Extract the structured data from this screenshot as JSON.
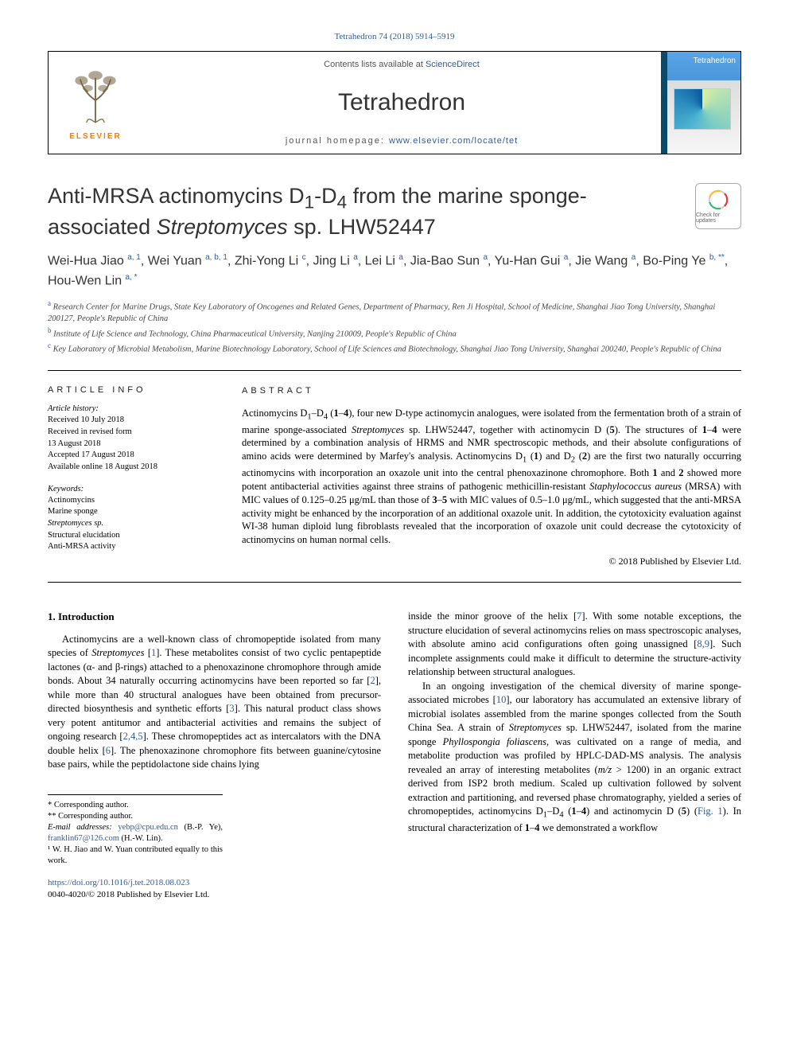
{
  "journal_ref": "Tetrahedron 74 (2018) 5914–5919",
  "header": {
    "contents_prefix": "Contents lists available at ",
    "contents_link": "ScienceDirect",
    "journal_title": "Tetrahedron",
    "homepage_prefix": "journal homepage: ",
    "homepage_link": "www.elsevier.com/locate/tet",
    "elsevier_name": "ELSEVIER",
    "cover_label": "Tetrahedron"
  },
  "crossmark": "Check for updates",
  "title_html": "Anti-MRSA actinomycins D<sub>1</sub>-D<sub>4</sub> from the marine sponge-associated <em>Streptomyces</em> sp. LHW52447",
  "authors_html": "Wei-Hua Jiao <sup>a, 1</sup>, Wei Yuan <sup>a, b, 1</sup>, Zhi-Yong Li <sup>c</sup>, Jing Li <sup>a</sup>, Lei Li <sup>a</sup>, Jia-Bao Sun <sup>a</sup>, Yu-Han Gui <sup>a</sup>, Jie Wang <sup>a</sup>, Bo-Ping Ye <sup>b, **</sup>, Hou-Wen Lin <sup>a, *</sup>",
  "affiliations": [
    {
      "sup": "a",
      "text": "Research Center for Marine Drugs, State Key Laboratory of Oncogenes and Related Genes, Department of Pharmacy, Ren Ji Hospital, School of Medicine, Shanghai Jiao Tong University, Shanghai 200127, People's Republic of China"
    },
    {
      "sup": "b",
      "text": "Institute of Life Science and Technology, China Pharmaceutical University, Nanjing 210009, People's Republic of China"
    },
    {
      "sup": "c",
      "text": "Key Laboratory of Microbial Metabolism, Marine Biotechnology Laboratory, School of Life Sciences and Biotechnology, Shanghai Jiao Tong University, Shanghai 200240, People's Republic of China"
    }
  ],
  "article_info": {
    "head": "ARTICLE INFO",
    "history_label": "Article history:",
    "history": [
      "Received 10 July 2018",
      "Received in revised form",
      "13 August 2018",
      "Accepted 17 August 2018",
      "Available online 18 August 2018"
    ],
    "keywords_label": "Keywords:",
    "keywords": [
      "Actinomycins",
      "Marine sponge",
      "Streptomyces sp.",
      "Structural elucidation",
      "Anti-MRSA activity"
    ]
  },
  "abstract": {
    "head": "ABSTRACT",
    "text_html": "Actinomycins D<sub>1</sub>–D<sub>4</sub> (<b>1</b>–<b>4</b>), four new D-type actinomycin analogues, were isolated from the fermentation broth of a strain of marine sponge-associated <em>Streptomyces</em> sp. LHW52447, together with actinomycin D (<b>5</b>). The structures of <b>1</b>–<b>4</b> were determined by a combination analysis of HRMS and NMR spectroscopic methods, and their absolute configurations of amino acids were determined by Marfey's analysis. Actinomycins D<sub>1</sub> (<b>1</b>) and D<sub>2</sub> (<b>2</b>) are the first two naturally occurring actinomycins with incorporation an oxazole unit into the central phenoxazinone chromophore. Both <b>1</b> and <b>2</b> showed more potent antibacterial activities against three strains of pathogenic methicillin-resistant <em>Staphylococcus aureus</em> (MRSA) with MIC values of 0.125–0.25 μg/mL than those of <b>3</b>–<b>5</b> with MIC values of 0.5–1.0 μg/mL, which suggested that the anti-MRSA activity might be enhanced by the incorporation of an additional oxazole unit. In addition, the cytotoxicity evaluation against WI-38 human diploid lung fibroblasts revealed that the incorporation of oxazole unit could decrease the cytotoxicity of actinomycins on human normal cells.",
    "copyright": "© 2018 Published by Elsevier Ltd."
  },
  "body": {
    "intro_head": "1. Introduction",
    "left_html": "Actinomycins are a well-known class of chromopeptide isolated from many species of <em>Streptomyces</em> [<span class=\"ref-link\">1</span>]. These metabolites consist of two cyclic pentapeptide lactones (α- and β-rings) attached to a phenoxazinone chromophore through amide bonds. About 34 naturally occurring actinomycins have been reported so far [<span class=\"ref-link\">2</span>], while more than 40 structural analogues have been obtained from precursor-directed biosynthesis and synthetic efforts [<span class=\"ref-link\">3</span>]. This natural product class shows very potent antitumor and antibacterial activities and remains the subject of ongoing research [<span class=\"ref-link\">2,4,5</span>]. These chromopeptides act as intercalators with the DNA double helix [<span class=\"ref-link\">6</span>]. The phenoxazinone chromophore fits between guanine/cytosine base pairs, while the peptidolactone side chains lying",
    "right1_html": "inside the minor groove of the helix [<span class=\"ref-link\">7</span>]. With some notable exceptions, the structure elucidation of several actinomycins relies on mass spectroscopic analyses, with absolute amino acid configurations often going unassigned [<span class=\"ref-link\">8,9</span>]. Such incomplete assignments could make it difficult to determine the structure-activity relationship between structural analogues.",
    "right2_html": "In an ongoing investigation of the chemical diversity of marine sponge-associated microbes [<span class=\"ref-link\">10</span>], our laboratory has accumulated an extensive library of microbial isolates assembled from the marine sponges collected from the South China Sea. A strain of <em>Streptomyces</em> sp. LHW52447, isolated from the marine sponge <em>Phyllospongia foliascens</em>, was cultivated on a range of media, and metabolite production was profiled by HPLC-DAD-MS analysis. The analysis revealed an array of interesting metabolites (<em>m/z</em> &gt; 1200) in an organic extract derived from ISP2 broth medium. Scaled up cultivation followed by solvent extraction and partitioning, and reversed phase chromatography, yielded a series of chromopeptides, actinomycins D<sub>1</sub>–D<sub>4</sub> (<b>1</b>–<b>4</b>) and actinomycin D (<b>5</b>) (<span class=\"ref-link\">Fig. 1</span>). In structural characterization of <b>1</b>–<b>4</b> we demonstrated a workflow"
  },
  "footnotes": {
    "star": "* Corresponding author.",
    "star2": "** Corresponding author.",
    "emails_label": "E-mail addresses:",
    "email1": "yebp@cpu.edu.cn",
    "email1_name": " (B.-P. Ye), ",
    "email2": "franklin67@126.com",
    "email2_name": " (H.-W. Lin).",
    "note1": "¹ W. H. Jiao and W. Yuan contributed equally to this work."
  },
  "footer": {
    "doi": "https://doi.org/10.1016/j.tet.2018.08.023",
    "issn_line": "0040-4020/© 2018 Published by Elsevier Ltd."
  },
  "colors": {
    "link": "#2e5c9e",
    "elsevier_orange": "#ff7a00",
    "text": "#000000",
    "cover_blue": "#4b97d9"
  },
  "typography": {
    "body_font": "Georgia, 'Times New Roman', serif",
    "ui_font": "Arial, sans-serif",
    "title_size_pt": 20,
    "journal_title_size_pt": 22,
    "body_size_pt": 9.5,
    "abstract_size_pt": 9.5
  }
}
